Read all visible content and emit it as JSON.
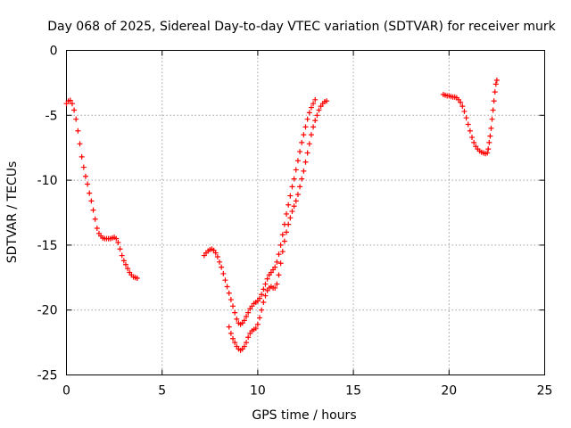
{
  "chart_data": {
    "type": "scatter",
    "title": "Day 068 of 2025, Sidereal Day-to-day VTEC variation (SDTVAR) for receiver murk",
    "xlabel": "GPS time / hours",
    "ylabel": "SDTVAR / TECUs",
    "xlim": [
      0,
      25
    ],
    "ylim": [
      -25,
      0
    ],
    "xticks": [
      "0",
      "5",
      "10",
      "15",
      "20",
      "25"
    ],
    "yticks": [
      "0",
      "-5",
      "-10",
      "-15",
      "-20",
      "-25"
    ],
    "grid": true,
    "marker": "plus",
    "color": "#ff0000",
    "segments": [
      {
        "points": [
          [
            0.0,
            -4.1
          ],
          [
            0.1,
            -3.9
          ],
          [
            0.2,
            -3.85
          ],
          [
            0.3,
            -4.1
          ],
          [
            0.4,
            -4.6
          ],
          [
            0.5,
            -5.3
          ],
          [
            0.6,
            -6.2
          ],
          [
            0.7,
            -7.2
          ],
          [
            0.8,
            -8.2
          ],
          [
            0.9,
            -9.0
          ],
          [
            1.0,
            -9.7
          ],
          [
            1.1,
            -10.3
          ],
          [
            1.2,
            -11.0
          ],
          [
            1.3,
            -11.6
          ],
          [
            1.4,
            -12.3
          ],
          [
            1.5,
            -13.0
          ],
          [
            1.6,
            -13.7
          ],
          [
            1.7,
            -14.1
          ],
          [
            1.8,
            -14.3
          ],
          [
            1.9,
            -14.45
          ],
          [
            2.0,
            -14.5
          ],
          [
            2.1,
            -14.5
          ],
          [
            2.2,
            -14.5
          ],
          [
            2.3,
            -14.5
          ],
          [
            2.4,
            -14.45
          ],
          [
            2.5,
            -14.4
          ],
          [
            2.6,
            -14.5
          ],
          [
            2.7,
            -14.8
          ],
          [
            2.8,
            -15.3
          ],
          [
            2.9,
            -15.8
          ],
          [
            3.0,
            -16.2
          ],
          [
            3.1,
            -16.5
          ],
          [
            3.2,
            -16.8
          ],
          [
            3.3,
            -17.1
          ],
          [
            3.4,
            -17.3
          ],
          [
            3.5,
            -17.45
          ],
          [
            3.6,
            -17.5
          ],
          [
            3.7,
            -17.55
          ]
        ]
      },
      {
        "points": [
          [
            7.2,
            -15.8
          ],
          [
            7.3,
            -15.6
          ],
          [
            7.4,
            -15.45
          ],
          [
            7.5,
            -15.35
          ],
          [
            7.6,
            -15.3
          ],
          [
            7.7,
            -15.4
          ],
          [
            7.8,
            -15.6
          ],
          [
            7.9,
            -15.9
          ],
          [
            8.0,
            -16.3
          ],
          [
            8.1,
            -16.7
          ],
          [
            8.2,
            -17.2
          ],
          [
            8.3,
            -17.7
          ],
          [
            8.4,
            -18.2
          ],
          [
            8.5,
            -18.7
          ],
          [
            8.6,
            -19.2
          ],
          [
            8.7,
            -19.7
          ],
          [
            8.8,
            -20.2
          ],
          [
            8.9,
            -20.7
          ],
          [
            9.0,
            -21.0
          ],
          [
            9.1,
            -21.1
          ],
          [
            9.2,
            -21.0
          ],
          [
            9.3,
            -20.8
          ],
          [
            9.4,
            -20.5
          ],
          [
            9.5,
            -20.2
          ],
          [
            9.6,
            -19.9
          ],
          [
            9.7,
            -19.7
          ],
          [
            9.8,
            -19.5
          ],
          [
            9.9,
            -19.4
          ],
          [
            10.0,
            -19.3
          ],
          [
            10.1,
            -19.1
          ],
          [
            10.2,
            -18.8
          ],
          [
            10.3,
            -18.4
          ],
          [
            10.4,
            -18.0
          ],
          [
            10.5,
            -17.6
          ],
          [
            10.6,
            -17.3
          ],
          [
            10.7,
            -17.1
          ],
          [
            10.8,
            -16.9
          ],
          [
            10.9,
            -16.7
          ],
          [
            11.0,
            -16.3
          ],
          [
            11.1,
            -15.7
          ],
          [
            11.2,
            -15.0
          ],
          [
            11.3,
            -14.2
          ],
          [
            11.4,
            -13.4
          ],
          [
            11.5,
            -12.6
          ],
          [
            11.6,
            -11.9
          ],
          [
            11.7,
            -11.2
          ],
          [
            11.8,
            -10.5
          ],
          [
            11.9,
            -9.9
          ],
          [
            12.0,
            -9.2
          ],
          [
            12.1,
            -8.5
          ],
          [
            12.2,
            -7.8
          ],
          [
            12.3,
            -7.1
          ],
          [
            12.4,
            -6.5
          ],
          [
            12.5,
            -5.9
          ],
          [
            12.6,
            -5.3
          ],
          [
            12.7,
            -4.8
          ],
          [
            12.8,
            -4.4
          ],
          [
            12.9,
            -4.1
          ],
          [
            13.0,
            -3.8
          ]
        ]
      },
      {
        "points": [
          [
            8.5,
            -21.3
          ],
          [
            8.6,
            -21.8
          ],
          [
            8.7,
            -22.2
          ],
          [
            8.8,
            -22.5
          ],
          [
            8.9,
            -22.8
          ],
          [
            9.0,
            -23.0
          ],
          [
            9.1,
            -23.1
          ],
          [
            9.2,
            -23.0
          ],
          [
            9.3,
            -22.8
          ],
          [
            9.4,
            -22.5
          ],
          [
            9.5,
            -22.1
          ],
          [
            9.6,
            -21.8
          ],
          [
            9.7,
            -21.6
          ],
          [
            9.8,
            -21.5
          ],
          [
            9.9,
            -21.4
          ],
          [
            10.0,
            -21.1
          ],
          [
            10.1,
            -20.6
          ],
          [
            10.2,
            -20.0
          ],
          [
            10.3,
            -19.4
          ],
          [
            10.4,
            -18.9
          ],
          [
            10.5,
            -18.5
          ],
          [
            10.6,
            -18.3
          ],
          [
            10.7,
            -18.2
          ],
          [
            10.8,
            -18.3
          ],
          [
            10.9,
            -18.3
          ],
          [
            11.0,
            -18.0
          ],
          [
            11.1,
            -17.3
          ],
          [
            11.2,
            -16.4
          ],
          [
            11.3,
            -15.5
          ],
          [
            11.4,
            -14.7
          ],
          [
            11.5,
            -14.0
          ],
          [
            11.6,
            -13.4
          ],
          [
            11.7,
            -12.9
          ],
          [
            11.8,
            -12.4
          ],
          [
            11.9,
            -12.0
          ],
          [
            12.0,
            -11.6
          ],
          [
            12.1,
            -11.1
          ],
          [
            12.2,
            -10.5
          ],
          [
            12.3,
            -9.9
          ],
          [
            12.4,
            -9.3
          ],
          [
            12.5,
            -8.6
          ],
          [
            12.6,
            -7.9
          ],
          [
            12.7,
            -7.2
          ],
          [
            12.8,
            -6.5
          ],
          [
            12.9,
            -5.9
          ],
          [
            13.0,
            -5.4
          ],
          [
            13.1,
            -5.0
          ],
          [
            13.2,
            -4.6
          ],
          [
            13.3,
            -4.3
          ],
          [
            13.4,
            -4.1
          ],
          [
            13.5,
            -3.95
          ],
          [
            13.6,
            -3.9
          ]
        ]
      },
      {
        "points": [
          [
            19.7,
            -3.4
          ],
          [
            19.8,
            -3.45
          ],
          [
            19.9,
            -3.5
          ],
          [
            20.0,
            -3.5
          ],
          [
            20.1,
            -3.55
          ],
          [
            20.2,
            -3.6
          ],
          [
            20.3,
            -3.6
          ],
          [
            20.4,
            -3.65
          ],
          [
            20.5,
            -3.8
          ],
          [
            20.6,
            -4.0
          ],
          [
            20.7,
            -4.3
          ],
          [
            20.8,
            -4.7
          ],
          [
            20.9,
            -5.2
          ],
          [
            21.0,
            -5.7
          ],
          [
            21.1,
            -6.2
          ],
          [
            21.2,
            -6.7
          ],
          [
            21.3,
            -7.1
          ],
          [
            21.4,
            -7.4
          ],
          [
            21.5,
            -7.6
          ],
          [
            21.6,
            -7.75
          ],
          [
            21.7,
            -7.85
          ],
          [
            21.8,
            -7.9
          ],
          [
            21.9,
            -7.95
          ],
          [
            22.0,
            -7.9
          ],
          [
            22.05,
            -7.6
          ],
          [
            22.1,
            -7.1
          ],
          [
            22.15,
            -6.6
          ],
          [
            22.2,
            -6.0
          ],
          [
            22.25,
            -5.3
          ],
          [
            22.3,
            -4.6
          ],
          [
            22.35,
            -3.9
          ],
          [
            22.4,
            -3.2
          ],
          [
            22.45,
            -2.6
          ],
          [
            22.5,
            -2.3
          ]
        ]
      }
    ]
  }
}
